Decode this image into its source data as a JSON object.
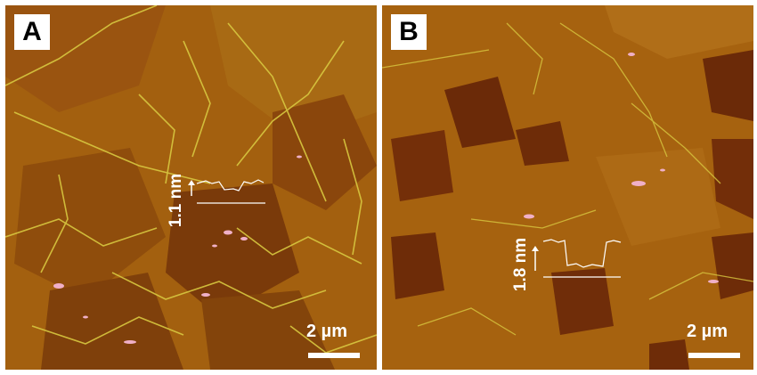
{
  "panels": [
    {
      "label": "A",
      "height_step": "1.1 nm",
      "scale_bar": "2 µm"
    },
    {
      "label": "B",
      "height_step": "1.8 nm",
      "scale_bar": "2 µm"
    }
  ],
  "colors": {
    "substrate": "#a05a10",
    "graphene_layer": "#8a4a0a",
    "dark_region": "#6b2a08",
    "wrinkles": "#d8c840",
    "particles": "#f0b0c8",
    "profile_line": "#ffffff"
  }
}
